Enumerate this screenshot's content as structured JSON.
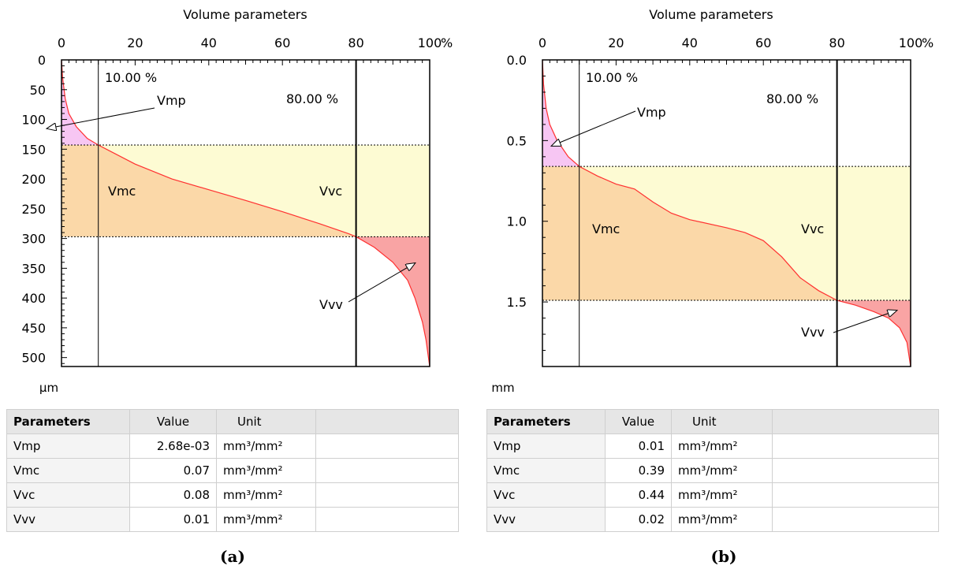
{
  "chart_data": [
    {
      "type": "area",
      "panel": "(a)",
      "title": "Volume parameters",
      "y_unit": "µm",
      "x_unit": "%",
      "xlim": [
        0,
        100
      ],
      "ylim": [
        0,
        515
      ],
      "x_ticks": [
        0,
        20,
        40,
        60,
        80,
        100
      ],
      "y_ticks": [
        0,
        50,
        100,
        150,
        200,
        250,
        300,
        350,
        400,
        450,
        500
      ],
      "y_tick_labels": [
        "0",
        "50",
        "100",
        "150",
        "200",
        "250",
        "300",
        "350",
        "400",
        "450",
        "500"
      ],
      "mr1": 10,
      "mr2": 80,
      "mr1_label": "10.00 %",
      "mr2_label": "80.00 %",
      "h1": 143,
      "h2": 297,
      "curve": [
        [
          0,
          0
        ],
        [
          0.3,
          30
        ],
        [
          1,
          65
        ],
        [
          2,
          90
        ],
        [
          4,
          112
        ],
        [
          7,
          132
        ],
        [
          10,
          143
        ],
        [
          20,
          175
        ],
        [
          30,
          200
        ],
        [
          40,
          218
        ],
        [
          50,
          236
        ],
        [
          60,
          255
        ],
        [
          70,
          275
        ],
        [
          78,
          292
        ],
        [
          80,
          297
        ],
        [
          85,
          315
        ],
        [
          90,
          340
        ],
        [
          94,
          370
        ],
        [
          96,
          400
        ],
        [
          98,
          440
        ],
        [
          99,
          470
        ],
        [
          100,
          515
        ]
      ],
      "region_labels": {
        "vmp": "Vmp",
        "vmc": "Vmc",
        "vvc": "Vvc",
        "vvv": "Vvv"
      },
      "colors": {
        "vmp": "#f7c6f3",
        "vmc": "#fbd8a8",
        "vvc": "#fdfbd3",
        "vvv": "#f9a4a4",
        "curve": "#ff3030"
      },
      "table": {
        "headers": [
          "Parameters",
          "Value",
          "Unit"
        ],
        "rows": [
          [
            "Vmp",
            "2.68e-03",
            "mm³/mm²"
          ],
          [
            "Vmc",
            "0.07",
            "mm³/mm²"
          ],
          [
            "Vvc",
            "0.08",
            "mm³/mm²"
          ],
          [
            "Vvv",
            "0.01",
            "mm³/mm²"
          ]
        ]
      }
    },
    {
      "type": "area",
      "panel": "(b)",
      "title": "Volume parameters",
      "y_unit": "mm",
      "x_unit": "%",
      "xlim": [
        0,
        100
      ],
      "ylim": [
        0,
        1.9
      ],
      "x_ticks": [
        0,
        20,
        40,
        60,
        80,
        100
      ],
      "y_ticks": [
        0,
        0.5,
        1.0,
        1.5
      ],
      "y_tick_labels": [
        "0.0",
        "0.5",
        "1.0",
        "1.5"
      ],
      "mr1": 10,
      "mr2": 80,
      "mr1_label": "10.00 %",
      "mr2_label": "80.00 %",
      "h1": 0.66,
      "h2": 1.49,
      "curve": [
        [
          0,
          0
        ],
        [
          0.3,
          0.15
        ],
        [
          1,
          0.3
        ],
        [
          2,
          0.4
        ],
        [
          4,
          0.5
        ],
        [
          7,
          0.6
        ],
        [
          10,
          0.66
        ],
        [
          15,
          0.72
        ],
        [
          20,
          0.77
        ],
        [
          25,
          0.8
        ],
        [
          30,
          0.88
        ],
        [
          35,
          0.95
        ],
        [
          40,
          0.99
        ],
        [
          50,
          1.04
        ],
        [
          55,
          1.07
        ],
        [
          60,
          1.12
        ],
        [
          65,
          1.22
        ],
        [
          70,
          1.35
        ],
        [
          75,
          1.43
        ],
        [
          80,
          1.49
        ],
        [
          85,
          1.52
        ],
        [
          90,
          1.56
        ],
        [
          94,
          1.6
        ],
        [
          97,
          1.66
        ],
        [
          99,
          1.75
        ],
        [
          100,
          1.9
        ]
      ],
      "region_labels": {
        "vmp": "Vmp",
        "vmc": "Vmc",
        "vvc": "Vvc",
        "vvv": "Vvv"
      },
      "colors": {
        "vmp": "#f7c6f3",
        "vmc": "#fbd8a8",
        "vvc": "#fdfbd3",
        "vvv": "#f9a4a4",
        "curve": "#ff3030"
      },
      "table": {
        "headers": [
          "Parameters",
          "Value",
          "Unit"
        ],
        "rows": [
          [
            "Vmp",
            "0.01",
            "mm³/mm²"
          ],
          [
            "Vmc",
            "0.39",
            "mm³/mm²"
          ],
          [
            "Vvc",
            "0.44",
            "mm³/mm²"
          ],
          [
            "Vvv",
            "0.02",
            "mm³/mm²"
          ]
        ]
      }
    }
  ]
}
